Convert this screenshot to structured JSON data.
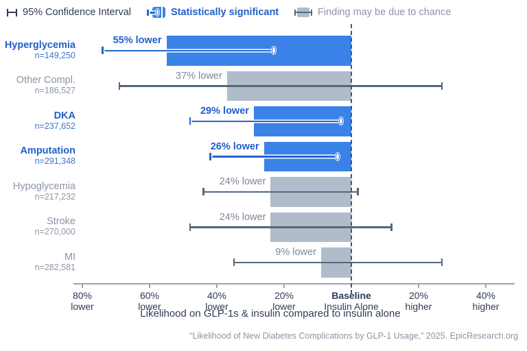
{
  "legend": {
    "ci_label": "95% Confidence Interval",
    "significant_label": "Statistically significant",
    "chance_label": "Finding may be due to chance"
  },
  "chart_data": {
    "type": "bar",
    "orientation": "horizontal",
    "unit": "percent change vs baseline",
    "axis_range_pct": [
      -82,
      48
    ],
    "grid": false,
    "xlabel": "Likelihood on GLP-1s & insulin compared to insulin alone",
    "baseline": {
      "value": 0,
      "line1": "Baseline",
      "line2": "Insulin Alone"
    },
    "x_ticks": [
      {
        "value": -80,
        "line1": "80%",
        "line2": "lower",
        "bold": false
      },
      {
        "value": -60,
        "line1": "60%",
        "line2": "lower",
        "bold": false
      },
      {
        "value": -40,
        "line1": "40%",
        "line2": "lower",
        "bold": false
      },
      {
        "value": -20,
        "line1": "20%",
        "line2": "lower",
        "bold": false
      },
      {
        "value": 0,
        "line1": "Baseline",
        "line2": "Insulin Alone",
        "bold": true
      },
      {
        "value": 20,
        "line1": "20%",
        "line2": "higher",
        "bold": false
      },
      {
        "value": 40,
        "line1": "40%",
        "line2": "higher",
        "bold": false
      }
    ],
    "rows": [
      {
        "label": "Hyperglycemia",
        "n_label": "n=149,250",
        "value_pct": -55,
        "value_label": "55% lower",
        "ci_pct": [
          -74,
          -23
        ],
        "significant": true
      },
      {
        "label": "Other Compl.",
        "n_label": "n=186,527",
        "value_pct": -37,
        "value_label": "37% lower",
        "ci_pct": [
          -69,
          27
        ],
        "significant": false
      },
      {
        "label": "DKA",
        "n_label": "n=237,652",
        "value_pct": -29,
        "value_label": "29% lower",
        "ci_pct": [
          -48,
          -3
        ],
        "significant": true
      },
      {
        "label": "Amputation",
        "n_label": "n=291,348",
        "value_pct": -26,
        "value_label": "26% lower",
        "ci_pct": [
          -42,
          -4
        ],
        "significant": true
      },
      {
        "label": "Hypoglycemia",
        "n_label": "n=217,232",
        "value_pct": -24,
        "value_label": "24% lower",
        "ci_pct": [
          -44,
          2
        ],
        "significant": false
      },
      {
        "label": "Stroke",
        "n_label": "n=270,000",
        "value_pct": -24,
        "value_label": "24% lower",
        "ci_pct": [
          -48,
          12
        ],
        "significant": false
      },
      {
        "label": "MI",
        "n_label": "n=282,581",
        "value_pct": -9,
        "value_label": "9% lower",
        "ci_pct": [
          -35,
          27
        ],
        "significant": false
      }
    ],
    "colors": {
      "significant_bar": "#3b82e8",
      "significant_text": "#2060c8",
      "significant_ci_line": "#2166d1",
      "chance_bar": "#b0bcc9",
      "chance_text": "#8b95a5",
      "ci_line": "#54677d",
      "axis_text": "#2e3a57",
      "axis_line": "#9aa4b2",
      "baseline_dash": "#46546f"
    }
  },
  "source": "“Likelihood of New Diabetes Complications by GLP-1 Usage,” 2025. EpicResearch.org"
}
